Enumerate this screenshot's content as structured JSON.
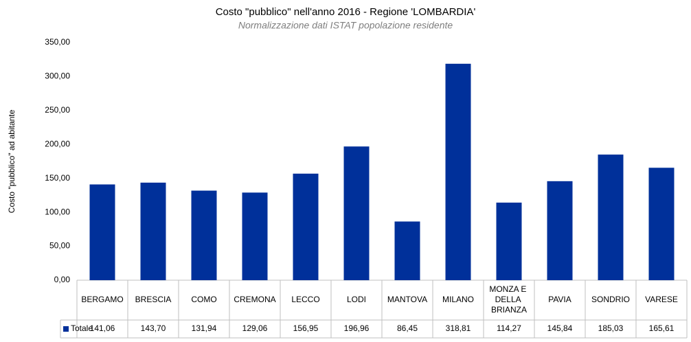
{
  "chart_data": {
    "type": "bar",
    "title": "Costo \"pubblico\" nell'anno 2016 - Regione 'LOMBARDIA'",
    "subtitle": "Normalizzazione dati ISTAT popolazione residente",
    "y_label": "Costo \"pubblico\" ad abitante",
    "categories": [
      "BERGAMO",
      "BRESCIA",
      "COMO",
      "CREMONA",
      "LECCO",
      "LODI",
      "MANTOVA",
      "MILANO",
      "MONZA E DELLA BRIANZA",
      "PAVIA",
      "SONDRIO",
      "VARESE"
    ],
    "series": [
      {
        "name": "Totale",
        "color": "#00309a",
        "values": [
          141.06,
          143.7,
          131.94,
          129.06,
          156.95,
          196.96,
          86.45,
          318.81,
          114.27,
          145.84,
          185.03,
          165.61
        ],
        "value_labels": [
          "141,06",
          "143,70",
          "131,94",
          "129,06",
          "156,95",
          "196,96",
          "86,45",
          "318,81",
          "114,27",
          "145,84",
          "185,03",
          "165,61"
        ]
      }
    ],
    "ylim": [
      0,
      350
    ],
    "yticks": [
      {
        "value": 0,
        "label": "0,00"
      },
      {
        "value": 50,
        "label": "50,00"
      },
      {
        "value": 100,
        "label": "100,00"
      },
      {
        "value": 150,
        "label": "150,00"
      },
      {
        "value": 200,
        "label": "200,00"
      },
      {
        "value": 250,
        "label": "250,00"
      },
      {
        "value": 300,
        "label": "300,00"
      },
      {
        "value": 350,
        "label": "350,00"
      }
    ],
    "grid": false
  }
}
